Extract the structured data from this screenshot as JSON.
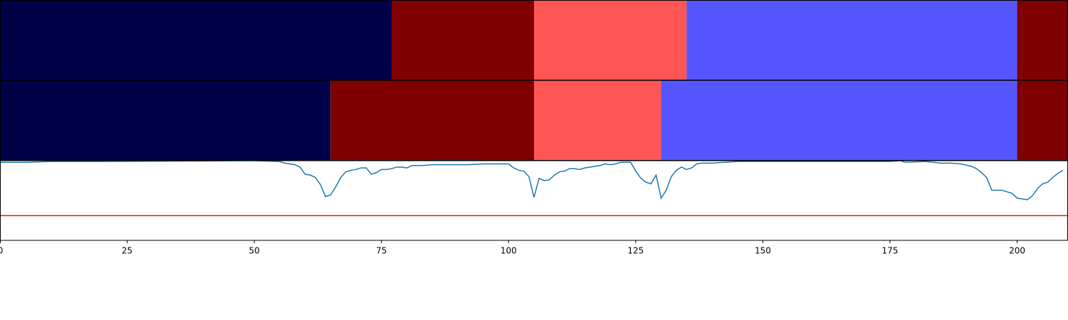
{
  "chart_data": [
    {
      "type": "segments",
      "xlim": [
        0,
        210
      ],
      "segments": [
        {
          "start": 0,
          "end": 77,
          "color": "#000048"
        },
        {
          "start": 77,
          "end": 105,
          "color": "#7f0000"
        },
        {
          "start": 105,
          "end": 135,
          "color": "#ff5555"
        },
        {
          "start": 135,
          "end": 200,
          "color": "#5555ff"
        },
        {
          "start": 200,
          "end": 210,
          "color": "#7f0000"
        }
      ]
    },
    {
      "type": "segments",
      "xlim": [
        0,
        210
      ],
      "segments": [
        {
          "start": 0,
          "end": 65,
          "color": "#000048"
        },
        {
          "start": 65,
          "end": 105,
          "color": "#7f0000"
        },
        {
          "start": 105,
          "end": 130,
          "color": "#ff5555"
        },
        {
          "start": 130,
          "end": 200,
          "color": "#5555ff"
        },
        {
          "start": 200,
          "end": 210,
          "color": "#7f0000"
        }
      ]
    },
    {
      "type": "line",
      "xlim": [
        0,
        210
      ],
      "ylim": [
        0,
        1
      ],
      "xticks": [
        0,
        25,
        50,
        75,
        100,
        125,
        150,
        175,
        200
      ],
      "hline": {
        "value": 0.31,
        "color": "#e41a1c"
      },
      "color": "#1f77b4",
      "x": [
        0,
        5,
        10,
        20,
        50,
        55,
        56,
        58,
        59,
        60,
        61,
        62,
        63,
        64,
        65,
        66,
        67,
        68,
        69,
        70,
        71,
        72,
        73,
        74,
        75,
        76,
        77,
        78,
        79,
        80,
        81,
        83,
        85,
        88,
        90,
        92,
        95,
        98,
        100,
        101,
        102,
        103,
        104,
        105,
        106,
        107,
        108,
        109,
        110,
        111,
        112,
        113,
        114,
        115,
        116,
        117,
        118,
        119,
        120,
        121,
        122,
        123,
        124,
        125,
        126,
        127,
        128,
        129,
        130,
        131,
        132,
        133,
        134,
        135,
        136,
        137,
        138,
        140,
        145,
        150,
        160,
        170,
        175,
        177,
        178,
        182,
        185,
        187,
        189,
        191,
        192,
        193,
        194,
        195,
        196,
        197,
        198,
        199,
        200,
        202,
        203,
        204,
        205,
        206,
        207,
        208,
        209
      ],
      "values": [
        0.98,
        0.98,
        0.99,
        0.99,
        1.0,
        0.99,
        0.97,
        0.95,
        0.92,
        0.83,
        0.82,
        0.79,
        0.7,
        0.55,
        0.57,
        0.67,
        0.79,
        0.86,
        0.88,
        0.89,
        0.91,
        0.91,
        0.83,
        0.85,
        0.89,
        0.89,
        0.9,
        0.92,
        0.92,
        0.91,
        0.94,
        0.94,
        0.95,
        0.95,
        0.95,
        0.95,
        0.96,
        0.96,
        0.96,
        0.91,
        0.88,
        0.87,
        0.8,
        0.54,
        0.78,
        0.75,
        0.76,
        0.82,
        0.86,
        0.87,
        0.9,
        0.9,
        0.89,
        0.91,
        0.92,
        0.93,
        0.94,
        0.96,
        0.95,
        0.96,
        0.98,
        0.98,
        0.98,
        0.87,
        0.78,
        0.73,
        0.71,
        0.82,
        0.53,
        0.63,
        0.8,
        0.88,
        0.92,
        0.89,
        0.91,
        0.96,
        0.97,
        0.97,
        0.99,
        0.99,
        0.99,
        0.99,
        0.99,
        1.0,
        0.98,
        0.99,
        0.97,
        0.97,
        0.96,
        0.93,
        0.9,
        0.85,
        0.79,
        0.63,
        0.63,
        0.63,
        0.61,
        0.59,
        0.53,
        0.51,
        0.56,
        0.65,
        0.71,
        0.73,
        0.79,
        0.84,
        0.88
      ]
    }
  ]
}
